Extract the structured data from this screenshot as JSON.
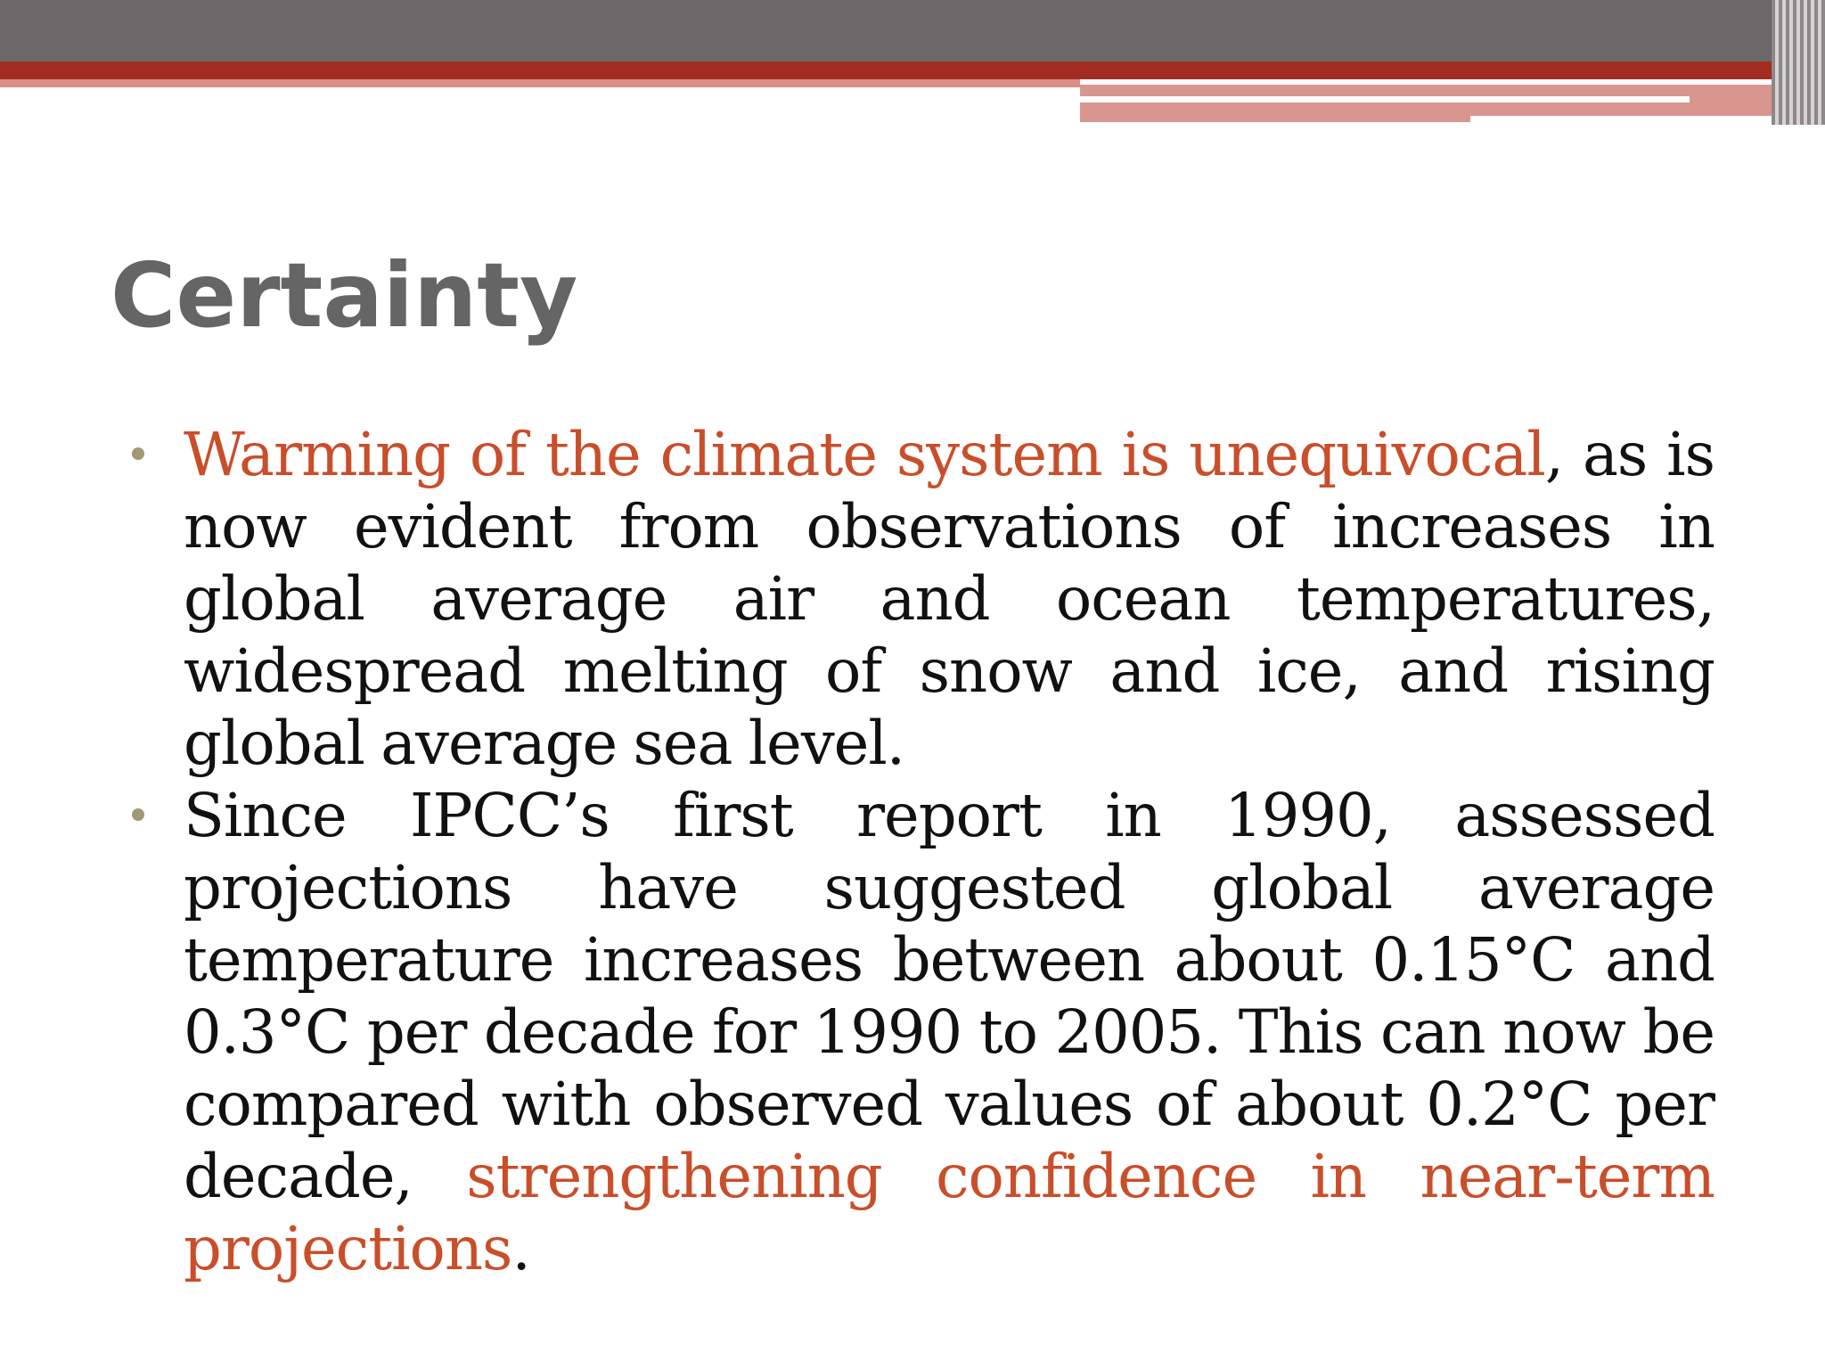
{
  "slide": {
    "title": "Certainty",
    "bullets": [
      {
        "highlight_start": "Warming of the climate system is unequivocal",
        "text": ", as is now evident from observations of increases in global average air and ocean temperatures, widespread melting of snow and ice, and rising global average sea level."
      },
      {
        "text_start": "Since IPCC’s first report in 1990, assessed projections have suggested global average temperature increases between about 0.15°C and 0.3°C per decade for 1990 to 2005. This can now be compared with observed values of about 0.2°C per decade, ",
        "highlight_end": "strengthening confidence in near-term projections",
        "text_end": "."
      }
    ]
  },
  "colors": {
    "title": "#656565",
    "highlight": "#c94e2a",
    "header_gray": "#6c6869",
    "header_red": "#a32c22",
    "header_pink": "#d9968f",
    "bullet_dot": "#a09876"
  }
}
